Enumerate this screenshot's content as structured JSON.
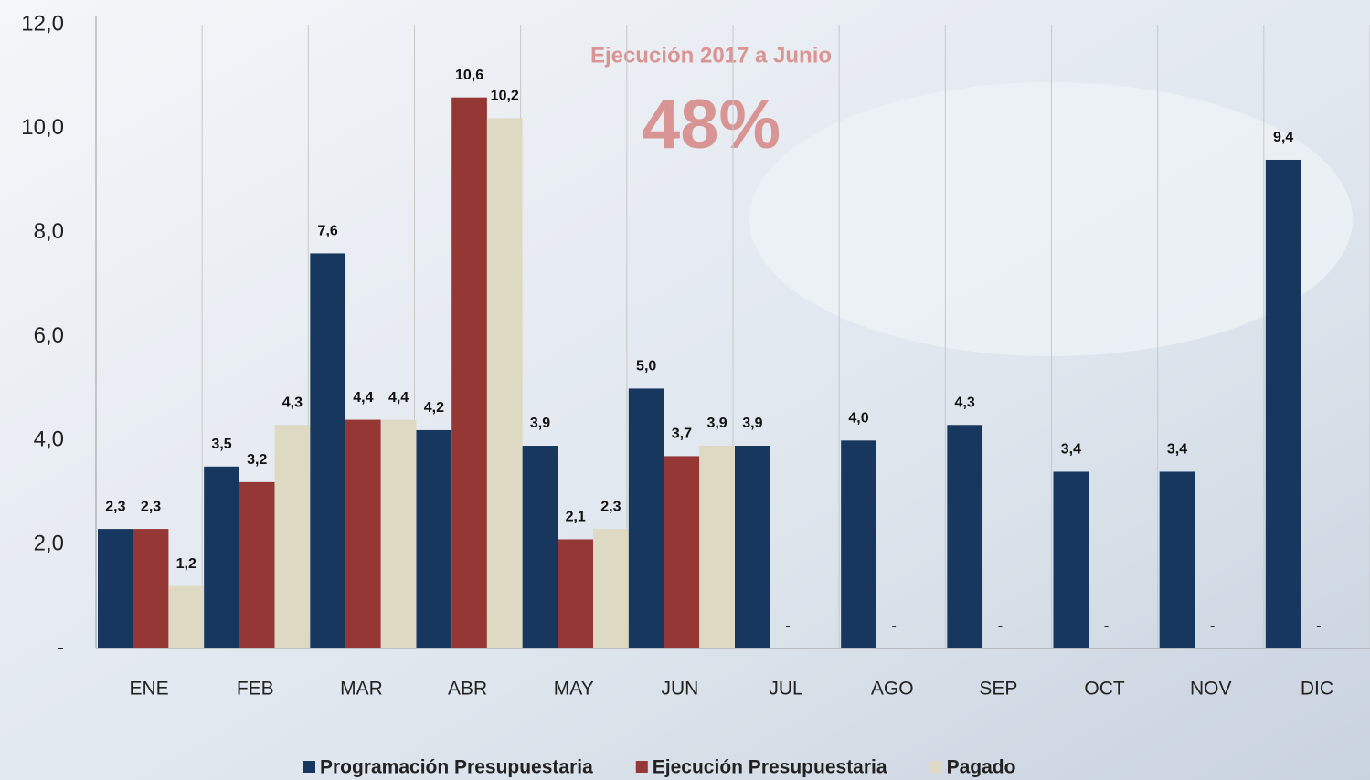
{
  "chart_data": {
    "type": "bar",
    "annotations": [
      "Ejecución 2017 a Junio",
      "48%"
    ],
    "categories": [
      "ENE",
      "FEB",
      "MAR",
      "ABR",
      "MAY",
      "JUN",
      "JUL",
      "AGO",
      "SEP",
      "OCT",
      "NOV",
      "DIC"
    ],
    "series": [
      {
        "name": "Programación Presupuestaria",
        "color": "#17375e",
        "values": [
          2.3,
          3.5,
          7.6,
          4.2,
          3.9,
          5.0,
          3.9,
          4.0,
          4.3,
          3.4,
          3.4,
          9.4
        ],
        "value_labels": [
          "2,3",
          "3,5",
          "7,6",
          "4,2",
          "3,9",
          "5,0",
          "3,9",
          "4,0",
          "4,3",
          "3,4",
          "3,4",
          "9,4"
        ]
      },
      {
        "name": "Ejecución Presupuestaria",
        "color": "#953735",
        "values": [
          2.3,
          3.2,
          4.4,
          10.6,
          2.1,
          3.7,
          0,
          0,
          0,
          0,
          0,
          0
        ],
        "value_labels": [
          "2,3",
          "3,2",
          "4,4",
          "10,6",
          "2,1",
          "3,7",
          "-",
          "-",
          "-",
          "-",
          "-",
          "-"
        ]
      },
      {
        "name": "Pagado",
        "color": "#ddd9c3",
        "values": [
          1.2,
          4.3,
          4.4,
          10.2,
          2.3,
          3.9,
          null,
          null,
          null,
          null,
          null,
          null
        ],
        "value_labels": [
          "1,2",
          "4,3",
          "4,4",
          "10,2",
          "2,3",
          "3,9",
          null,
          null,
          null,
          null,
          null,
          null
        ]
      }
    ],
    "ylim": [
      0,
      12
    ],
    "yticks": [
      {
        "value": 0,
        "label": "-"
      },
      {
        "value": 2,
        "label": "2,0"
      },
      {
        "value": 4,
        "label": "4,0"
      },
      {
        "value": 6,
        "label": "6,0"
      },
      {
        "value": 8,
        "label": "8,0"
      },
      {
        "value": 10,
        "label": "10,0"
      },
      {
        "value": 12,
        "label": "12,0"
      }
    ],
    "grid": true,
    "legend": "bottom"
  }
}
